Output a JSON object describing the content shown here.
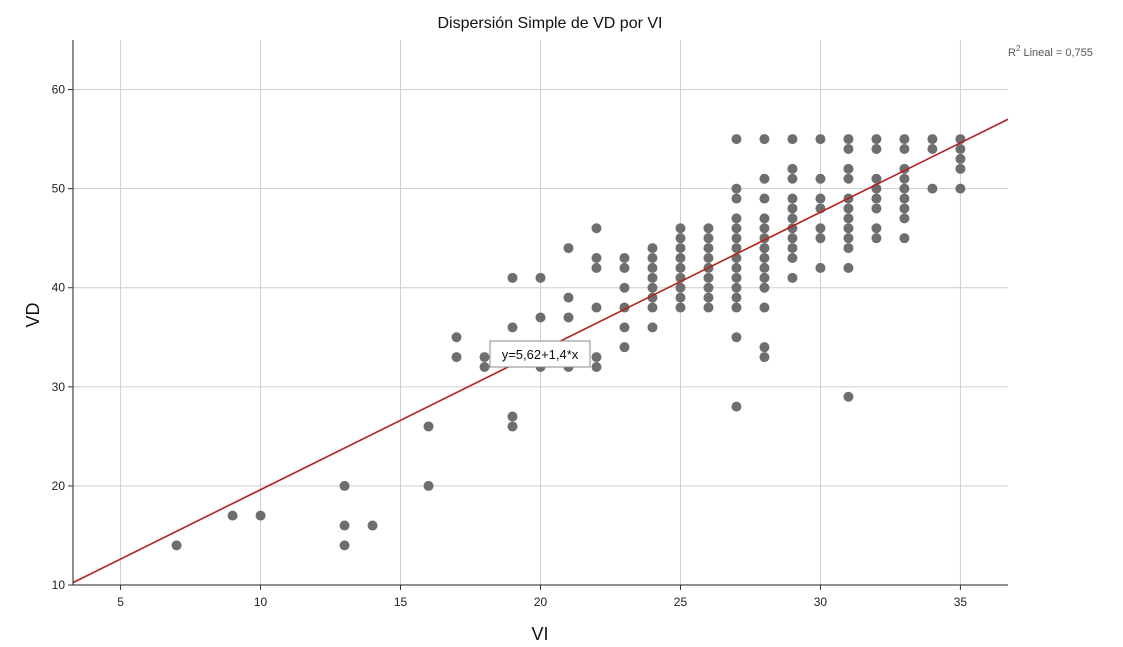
{
  "chart_data": {
    "type": "scatter",
    "title": "Dispersión Simple de VD por VI",
    "xlabel": "VI",
    "ylabel": "VD",
    "xlim": [
      3.3,
      36.7
    ],
    "ylim": [
      10,
      65
    ],
    "xticks": [
      5,
      10,
      15,
      20,
      25,
      30,
      35
    ],
    "yticks": [
      10,
      20,
      30,
      40,
      50,
      60
    ],
    "grid": true,
    "fit_line": {
      "intercept": 5.62,
      "slope": 1.4,
      "label": "y=5,62+1,4*x",
      "color": "#b22222"
    },
    "r2_prefix": "R",
    "r2_suffix": " Lineal = 0,755",
    "point_color": "#6e6e6e",
    "points": [
      [
        7,
        14
      ],
      [
        9,
        17
      ],
      [
        10,
        17
      ],
      [
        13,
        14
      ],
      [
        13,
        16
      ],
      [
        13,
        20
      ],
      [
        14,
        16
      ],
      [
        16,
        20
      ],
      [
        16,
        26
      ],
      [
        17,
        33
      ],
      [
        17,
        35
      ],
      [
        18,
        32
      ],
      [
        18,
        33
      ],
      [
        19,
        26
      ],
      [
        19,
        27
      ],
      [
        19,
        36
      ],
      [
        19,
        41
      ],
      [
        20,
        32
      ],
      [
        20,
        33
      ],
      [
        20,
        37
      ],
      [
        20,
        41
      ],
      [
        21,
        32
      ],
      [
        21,
        37
      ],
      [
        21,
        39
      ],
      [
        21,
        44
      ],
      [
        22,
        32
      ],
      [
        22,
        33
      ],
      [
        22,
        38
      ],
      [
        22,
        42
      ],
      [
        22,
        43
      ],
      [
        22,
        46
      ],
      [
        23,
        34
      ],
      [
        23,
        36
      ],
      [
        23,
        38
      ],
      [
        23,
        40
      ],
      [
        23,
        42
      ],
      [
        23,
        43
      ],
      [
        24,
        36
      ],
      [
        24,
        38
      ],
      [
        24,
        39
      ],
      [
        24,
        40
      ],
      [
        24,
        41
      ],
      [
        24,
        42
      ],
      [
        24,
        43
      ],
      [
        24,
        44
      ],
      [
        25,
        38
      ],
      [
        25,
        39
      ],
      [
        25,
        40
      ],
      [
        25,
        41
      ],
      [
        25,
        42
      ],
      [
        25,
        43
      ],
      [
        25,
        44
      ],
      [
        25,
        45
      ],
      [
        25,
        46
      ],
      [
        26,
        38
      ],
      [
        26,
        39
      ],
      [
        26,
        40
      ],
      [
        26,
        41
      ],
      [
        26,
        42
      ],
      [
        26,
        43
      ],
      [
        26,
        44
      ],
      [
        26,
        45
      ],
      [
        26,
        46
      ],
      [
        27,
        28
      ],
      [
        27,
        35
      ],
      [
        27,
        38
      ],
      [
        27,
        39
      ],
      [
        27,
        40
      ],
      [
        27,
        41
      ],
      [
        27,
        42
      ],
      [
        27,
        43
      ],
      [
        27,
        44
      ],
      [
        27,
        45
      ],
      [
        27,
        46
      ],
      [
        27,
        47
      ],
      [
        27,
        49
      ],
      [
        27,
        50
      ],
      [
        27,
        55
      ],
      [
        28,
        33
      ],
      [
        28,
        34
      ],
      [
        28,
        38
      ],
      [
        28,
        40
      ],
      [
        28,
        41
      ],
      [
        28,
        42
      ],
      [
        28,
        43
      ],
      [
        28,
        44
      ],
      [
        28,
        45
      ],
      [
        28,
        46
      ],
      [
        28,
        47
      ],
      [
        28,
        49
      ],
      [
        28,
        51
      ],
      [
        28,
        55
      ],
      [
        29,
        41
      ],
      [
        29,
        43
      ],
      [
        29,
        44
      ],
      [
        29,
        45
      ],
      [
        29,
        46
      ],
      [
        29,
        47
      ],
      [
        29,
        48
      ],
      [
        29,
        49
      ],
      [
        29,
        51
      ],
      [
        29,
        52
      ],
      [
        29,
        55
      ],
      [
        30,
        42
      ],
      [
        30,
        45
      ],
      [
        30,
        46
      ],
      [
        30,
        48
      ],
      [
        30,
        49
      ],
      [
        30,
        51
      ],
      [
        30,
        55
      ],
      [
        31,
        29
      ],
      [
        31,
        42
      ],
      [
        31,
        44
      ],
      [
        31,
        45
      ],
      [
        31,
        46
      ],
      [
        31,
        47
      ],
      [
        31,
        48
      ],
      [
        31,
        49
      ],
      [
        31,
        51
      ],
      [
        31,
        52
      ],
      [
        31,
        54
      ],
      [
        31,
        55
      ],
      [
        32,
        45
      ],
      [
        32,
        46
      ],
      [
        32,
        48
      ],
      [
        32,
        49
      ],
      [
        32,
        50
      ],
      [
        32,
        51
      ],
      [
        32,
        54
      ],
      [
        32,
        55
      ],
      [
        33,
        45
      ],
      [
        33,
        47
      ],
      [
        33,
        48
      ],
      [
        33,
        49
      ],
      [
        33,
        50
      ],
      [
        33,
        51
      ],
      [
        33,
        52
      ],
      [
        33,
        54
      ],
      [
        33,
        55
      ],
      [
        34,
        50
      ],
      [
        34,
        54
      ],
      [
        34,
        55
      ],
      [
        35,
        50
      ],
      [
        35,
        52
      ],
      [
        35,
        53
      ],
      [
        35,
        54
      ],
      [
        35,
        55
      ]
    ]
  }
}
